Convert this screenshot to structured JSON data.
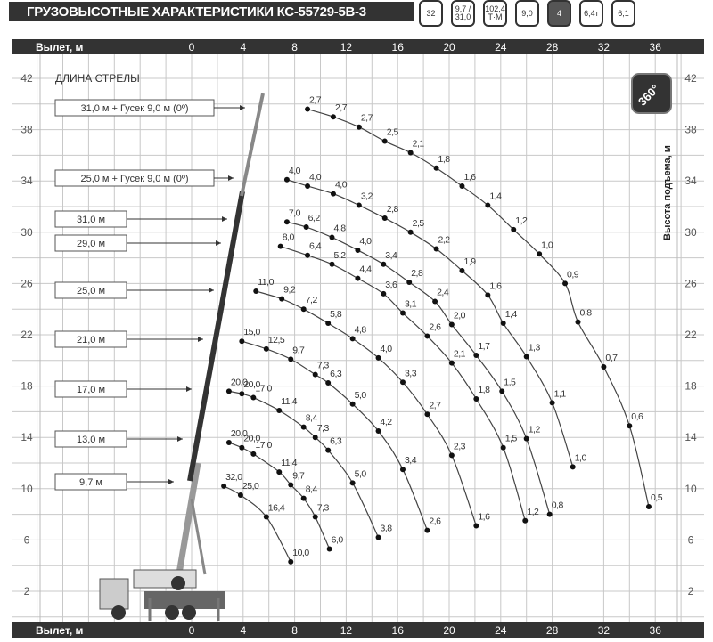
{
  "header": {
    "title": "ГРУЗОВЫСОТНЫЕ ХАРАКТЕРИСТИКИ КС-55729-5В-3",
    "icons": [
      {
        "name": "max-load-weight-icon",
        "text": "32"
      },
      {
        "name": "boom-length-range-icon",
        "text": "9,7 / 31,0"
      },
      {
        "name": "load-moment-icon",
        "text": "102,4 Т·М"
      },
      {
        "name": "jib-length-icon",
        "text": "9,0"
      },
      {
        "name": "boom-sections-icon",
        "text": "4"
      },
      {
        "name": "counterweight-icon",
        "text": "6,4т"
      },
      {
        "name": "outrigger-base-icon",
        "text": "6,1"
      }
    ],
    "rotation_badge": "360°"
  },
  "chart_data": {
    "type": "line",
    "title": "",
    "xlabel": "Вылет, м",
    "ylabel": "Высота подъема, м",
    "legend_title": "ДЛИНА СТРЕЛЫ",
    "xlim": [
      -14,
      38
    ],
    "ylim": [
      0,
      44
    ],
    "x_ticks": [
      0,
      4,
      8,
      12,
      16,
      20,
      24,
      28,
      32,
      36
    ],
    "y_ticks": [
      42,
      38,
      34,
      30,
      26,
      22,
      18,
      14,
      10,
      6,
      2
    ],
    "grid": true,
    "series": [
      {
        "name": "31,0 м + Гусек 9,0 м (0º)",
        "points": [
          {
            "x": 9,
            "y": 39.6,
            "load": "2,7"
          },
          {
            "x": 11,
            "y": 39.0,
            "load": "2,7"
          },
          {
            "x": 13,
            "y": 38.2,
            "load": "2,7"
          },
          {
            "x": 15,
            "y": 37.1,
            "load": "2,5"
          },
          {
            "x": 17,
            "y": 36.2,
            "load": "2,1"
          },
          {
            "x": 19,
            "y": 35.0,
            "load": "1,8"
          },
          {
            "x": 21,
            "y": 33.6,
            "load": "1,6"
          },
          {
            "x": 23,
            "y": 32.1,
            "load": "1,4"
          },
          {
            "x": 25,
            "y": 30.2,
            "load": "1,2"
          },
          {
            "x": 27,
            "y": 28.3,
            "load": "1,0"
          },
          {
            "x": 29,
            "y": 26.0,
            "load": "0,9"
          },
          {
            "x": 30,
            "y": 23.0,
            "load": "0,8"
          },
          {
            "x": 32,
            "y": 19.5,
            "load": "0,7"
          },
          {
            "x": 34,
            "y": 14.9,
            "load": "0,6"
          },
          {
            "x": 35.5,
            "y": 8.6,
            "load": "0,5"
          }
        ]
      },
      {
        "name": "25,0 м + Гусек 9,0 м (0º)",
        "points": [
          {
            "x": 7.4,
            "y": 34.1,
            "load": "4,0"
          },
          {
            "x": 9,
            "y": 33.6,
            "load": "4,0"
          },
          {
            "x": 11,
            "y": 33.0,
            "load": "4,0"
          },
          {
            "x": 13,
            "y": 32.1,
            "load": "3,2"
          },
          {
            "x": 15,
            "y": 31.1,
            "load": "2,8"
          },
          {
            "x": 17,
            "y": 30.0,
            "load": "2,5"
          },
          {
            "x": 19,
            "y": 28.7,
            "load": "2,2"
          },
          {
            "x": 21,
            "y": 27.0,
            "load": "1,9"
          },
          {
            "x": 23,
            "y": 25.1,
            "load": "1,6"
          },
          {
            "x": 24.2,
            "y": 22.9,
            "load": "1,4"
          },
          {
            "x": 26,
            "y": 20.3,
            "load": "1,3"
          },
          {
            "x": 28,
            "y": 16.7,
            "load": "1,1"
          },
          {
            "x": 29.6,
            "y": 11.7,
            "load": "1,0"
          }
        ]
      },
      {
        "name": "31,0 м",
        "points": [
          {
            "x": 7.4,
            "y": 30.8,
            "load": "7,0"
          },
          {
            "x": 8.9,
            "y": 30.4,
            "load": "6,2"
          },
          {
            "x": 10.9,
            "y": 29.6,
            "load": "4,8"
          },
          {
            "x": 12.9,
            "y": 28.6,
            "load": "4,0"
          },
          {
            "x": 14.9,
            "y": 27.5,
            "load": "3,4"
          },
          {
            "x": 16.9,
            "y": 26.1,
            "load": "2,8"
          },
          {
            "x": 18.9,
            "y": 24.6,
            "load": "2,4"
          },
          {
            "x": 20.2,
            "y": 22.8,
            "load": "2,0"
          },
          {
            "x": 22.1,
            "y": 20.4,
            "load": "1,7"
          },
          {
            "x": 24.1,
            "y": 17.6,
            "load": "1,5"
          },
          {
            "x": 26,
            "y": 13.9,
            "load": "1,2"
          },
          {
            "x": 27.8,
            "y": 8.0,
            "load": "0,8"
          }
        ]
      },
      {
        "name": "29,0 м",
        "points": [
          {
            "x": 6.9,
            "y": 28.9,
            "load": "8,0"
          },
          {
            "x": 9,
            "y": 28.2,
            "load": "6,4"
          },
          {
            "x": 10.9,
            "y": 27.5,
            "load": "5,2"
          },
          {
            "x": 12.9,
            "y": 26.4,
            "load": "4,4"
          },
          {
            "x": 14.9,
            "y": 25.2,
            "load": "3,6"
          },
          {
            "x": 16.4,
            "y": 23.7,
            "load": "3,1"
          },
          {
            "x": 18.3,
            "y": 21.9,
            "load": "2,6"
          },
          {
            "x": 20.2,
            "y": 19.8,
            "load": "2,1"
          },
          {
            "x": 22.1,
            "y": 17.0,
            "load": "1,8"
          },
          {
            "x": 24.2,
            "y": 13.2,
            "load": "1,5"
          },
          {
            "x": 25.9,
            "y": 7.5,
            "load": "1,2"
          }
        ]
      },
      {
        "name": "25,0 м",
        "points": [
          {
            "x": 5,
            "y": 25.4,
            "load": "11,0"
          },
          {
            "x": 7,
            "y": 24.8,
            "load": "9,2"
          },
          {
            "x": 8.7,
            "y": 24.0,
            "load": "7,2"
          },
          {
            "x": 10.6,
            "y": 22.9,
            "load": "5,8"
          },
          {
            "x": 12.5,
            "y": 21.7,
            "load": "4,8"
          },
          {
            "x": 14.5,
            "y": 20.2,
            "load": "4,0"
          },
          {
            "x": 16.4,
            "y": 18.3,
            "load": "3,3"
          },
          {
            "x": 18.3,
            "y": 15.8,
            "load": "2,7"
          },
          {
            "x": 20.2,
            "y": 12.6,
            "load": "2,3"
          },
          {
            "x": 22.1,
            "y": 7.1,
            "load": "1,6"
          }
        ]
      },
      {
        "name": "21,0 м",
        "points": [
          {
            "x": 3.9,
            "y": 21.5,
            "load": "15,0"
          },
          {
            "x": 5.8,
            "y": 20.9,
            "load": "12,5"
          },
          {
            "x": 7.7,
            "y": 20.1,
            "load": "9,7"
          },
          {
            "x": 9.6,
            "y": 18.9,
            "load": "7,3"
          },
          {
            "x": 10.6,
            "y": 18.25,
            "load": "6,3"
          },
          {
            "x": 12.5,
            "y": 16.6,
            "load": "5,0"
          },
          {
            "x": 14.5,
            "y": 14.5,
            "load": "4,2"
          },
          {
            "x": 16.4,
            "y": 11.5,
            "load": "3,4"
          },
          {
            "x": 18.3,
            "y": 6.75,
            "load": "2,6"
          }
        ]
      },
      {
        "name": "17,0 м",
        "points": [
          {
            "x": 2.9,
            "y": 17.6,
            "load": "20,0"
          },
          {
            "x": 3.9,
            "y": 17.4,
            "load": "20,0"
          },
          {
            "x": 4.8,
            "y": 17.1,
            "load": "17,0"
          },
          {
            "x": 6.8,
            "y": 16.1,
            "load": "11,4"
          },
          {
            "x": 8.7,
            "y": 14.8,
            "load": "8,4"
          },
          {
            "x": 9.6,
            "y": 14.0,
            "load": "7,3"
          },
          {
            "x": 10.6,
            "y": 13.0,
            "load": "6,3"
          },
          {
            "x": 12.5,
            "y": 10.45,
            "load": "5,0"
          },
          {
            "x": 14.5,
            "y": 6.2,
            "load": "3,8"
          }
        ]
      },
      {
        "name": "13,0 м",
        "points": [
          {
            "x": 2.9,
            "y": 13.6,
            "load": "20,0"
          },
          {
            "x": 3.9,
            "y": 13.2,
            "load": "20,0"
          },
          {
            "x": 4.8,
            "y": 12.7,
            "load": "17,0"
          },
          {
            "x": 6.8,
            "y": 11.3,
            "load": "11,4"
          },
          {
            "x": 7.7,
            "y": 10.3,
            "load": "9,7"
          },
          {
            "x": 8.7,
            "y": 9.25,
            "load": "8,4"
          },
          {
            "x": 9.6,
            "y": 7.8,
            "load": "7,3"
          },
          {
            "x": 10.7,
            "y": 5.3,
            "load": "6,0"
          }
        ]
      },
      {
        "name": "9,7 м",
        "points": [
          {
            "x": 2.5,
            "y": 10.2,
            "load": "32,0"
          },
          {
            "x": 3.8,
            "y": 9.5,
            "load": "25,0"
          },
          {
            "x": 5.8,
            "y": 7.8,
            "load": "16,4"
          },
          {
            "x": 7.7,
            "y": 4.3,
            "load": "10,0"
          }
        ]
      }
    ]
  }
}
